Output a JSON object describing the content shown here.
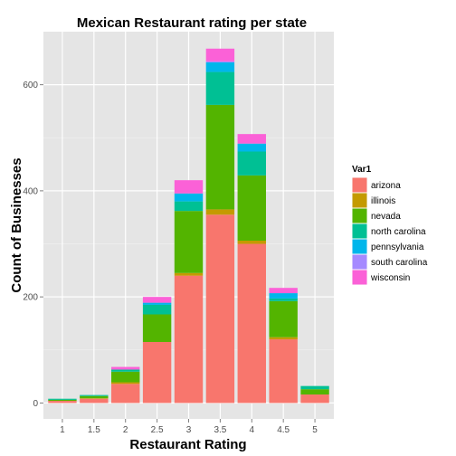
{
  "chart_data": {
    "type": "bar",
    "stacked": true,
    "title": "Mexican Restaurant rating per state",
    "xlabel": "Restaurant Rating",
    "ylabel": "Count of Businesses",
    "categories": [
      "1",
      "1.5",
      "2",
      "2.5",
      "3",
      "3.5",
      "4",
      "4.5",
      "5"
    ],
    "yticks": [
      0,
      200,
      400,
      600
    ],
    "ylim": [
      -30,
      700
    ],
    "grid": true,
    "legend": {
      "title": "Var1",
      "position": "right"
    },
    "series": [
      {
        "name": "arizona",
        "color": "#F8766D",
        "values": [
          4,
          8,
          36,
          115,
          240,
          355,
          300,
          120,
          16
        ]
      },
      {
        "name": "illinois",
        "color": "#C49A00",
        "values": [
          0,
          1,
          3,
          0,
          5,
          10,
          6,
          4,
          0
        ]
      },
      {
        "name": "nevada",
        "color": "#53B400",
        "values": [
          2,
          4,
          20,
          52,
          117,
          197,
          123,
          68,
          10
        ]
      },
      {
        "name": "north carolina",
        "color": "#00C094",
        "values": [
          2,
          2,
          4,
          18,
          18,
          62,
          45,
          5,
          6
        ]
      },
      {
        "name": "pennsylvania",
        "color": "#00B6EB",
        "values": [
          0,
          0,
          0,
          4,
          15,
          18,
          15,
          10,
          0
        ]
      },
      {
        "name": "south carolina",
        "color": "#A58AFF",
        "values": [
          0,
          0,
          0,
          0,
          0,
          2,
          0,
          0,
          0
        ]
      },
      {
        "name": "wisconsin",
        "color": "#FB61D7",
        "values": [
          0,
          0,
          5,
          11,
          25,
          24,
          18,
          10,
          0
        ]
      }
    ]
  }
}
